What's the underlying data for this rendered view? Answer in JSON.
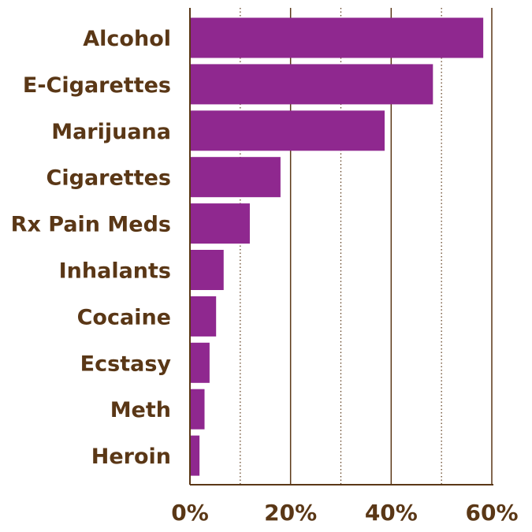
{
  "chart_data": {
    "type": "bar",
    "orientation": "horizontal",
    "categories": [
      "Alcohol",
      "E-Cigarettes",
      "Marijuana",
      "Cigarettes",
      "Rx Pain Meds",
      "Inhalants",
      "Cocaine",
      "Ecstasy",
      "Meth",
      "Heroin"
    ],
    "values": [
      58.3,
      48.3,
      38.7,
      18.0,
      11.9,
      6.7,
      5.2,
      3.9,
      2.9,
      1.9
    ],
    "title": "",
    "xlabel": "",
    "ylabel": "",
    "xlim": [
      0,
      60
    ],
    "x_ticks": [
      0,
      20,
      40,
      60
    ],
    "x_tick_labels": [
      "0%",
      "20%",
      "40%",
      "60%"
    ],
    "minor_gridlines": [
      10,
      30,
      50
    ],
    "grid": true,
    "legend": "none",
    "colors": {
      "bar": "#8f288f",
      "text": "#5a3716",
      "axis": "#5a3716",
      "minor_grid": "#5a3716"
    }
  }
}
